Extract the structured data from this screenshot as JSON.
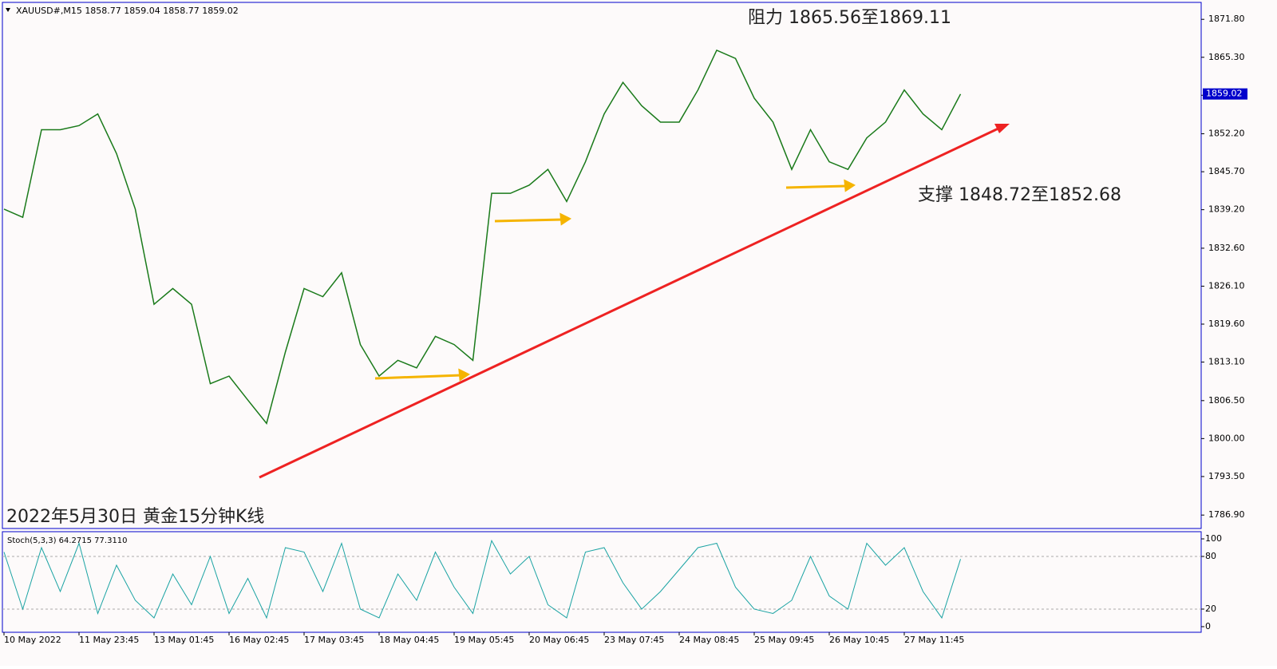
{
  "header": "XAUUSD#,M15  1858.77 1859.04 1858.77 1859.02",
  "chart_data": {
    "type": "line",
    "categories": [
      "10 May 2022",
      null,
      null,
      null,
      "11 May 23:45",
      null,
      null,
      null,
      "13 May 01:45",
      null,
      null,
      null,
      "16 May 02:45",
      null,
      null,
      null,
      "17 May 03:45",
      null,
      null,
      null,
      "18 May 04:45",
      null,
      null,
      null,
      "19 May 05:45",
      null,
      null,
      null,
      "20 May 06:45",
      null,
      null,
      null,
      "23 May 07:45",
      null,
      null,
      null,
      "24 May 08:45",
      null,
      null,
      null,
      "25 May 09:45",
      null,
      null,
      null,
      "26 May 10:45",
      null,
      null,
      null,
      "27 May 11:45",
      null,
      null,
      null
    ],
    "series": [
      {
        "color": "#1a7a1a",
        "values": [
          1839.3,
          1837.9,
          1852.9,
          1852.9,
          1853.6,
          1855.6,
          1848.8,
          1839.3,
          1823,
          1825.7,
          1823,
          1809.4,
          1810.7,
          1806.6,
          1802.6,
          1814.8,
          1825.7,
          1824.3,
          1828.4,
          1816.1,
          1810.7,
          1813.4,
          1812.1,
          1817.5,
          1816.1,
          1813.4,
          1842,
          1842,
          1843.4,
          1846.1,
          1840.6,
          1847.4,
          1855.6,
          1861,
          1857,
          1854.2,
          1854.2,
          1859.7,
          1866.5,
          1865.1,
          1858.3,
          1854.2,
          1846.1,
          1852.9,
          1847.4,
          1846.1,
          1851.5,
          1854.2,
          1859.7,
          1855.6,
          1852.9,
          1859
        ]
      }
    ],
    "ylim": [
      1784.6,
      1874.7
    ],
    "yticks": [
      {
        "value": 1871.8,
        "label": "1871.80"
      },
      {
        "value": 1865.3,
        "label": "1865.30"
      },
      {
        "value": 1858.8,
        "label": "1858.80"
      },
      {
        "value": 1852.2,
        "label": "1852.20"
      },
      {
        "value": 1845.7,
        "label": "1845.70"
      },
      {
        "value": 1839.2,
        "label": "1839.20"
      },
      {
        "value": 1832.6,
        "label": "1832.60"
      },
      {
        "value": 1826.1,
        "label": "1826.10"
      },
      {
        "value": 1819.6,
        "label": "1819.60"
      },
      {
        "value": 1813.1,
        "label": "1813.10"
      },
      {
        "value": 1806.5,
        "label": "1806.50"
      },
      {
        "value": 1800,
        "label": "1800.00"
      },
      {
        "value": 1793.5,
        "label": "1793.50"
      },
      {
        "value": 1786.9,
        "label": "1786.90"
      }
    ],
    "last_price": 1859.02,
    "annotations": [
      "阻力 1865.56至1869.11",
      "支撑 1848.72至1852.68",
      "2022年5月30日 黄金15分钟K线"
    ]
  },
  "indicator": {
    "title": "Stoch(5,3,3) 64.2715 77.3110",
    "color": "#1aa3a3",
    "values": [
      85,
      20,
      90,
      40,
      95,
      15,
      70,
      30,
      10,
      60,
      25,
      80,
      15,
      55,
      10,
      90,
      85,
      40,
      95,
      20,
      10,
      60,
      30,
      85,
      45,
      15,
      98,
      60,
      80,
      25,
      10,
      85,
      90,
      50,
      20,
      40,
      65,
      90,
      95,
      45,
      20,
      15,
      30,
      80,
      35,
      20,
      95,
      70,
      90,
      40,
      10,
      77
    ],
    "ylim": [
      -6.4,
      108.2
    ],
    "yticks": [
      100,
      80,
      20,
      0
    ]
  }
}
